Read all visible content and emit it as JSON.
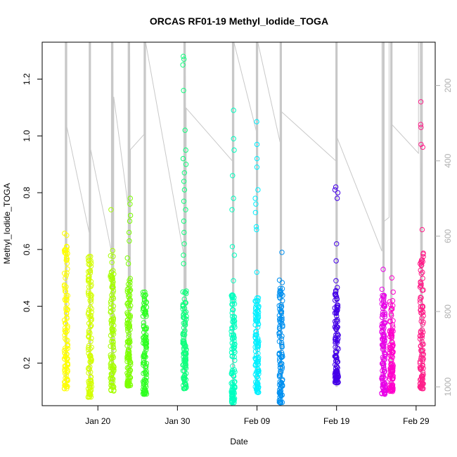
{
  "chart_data": {
    "type": "scatter",
    "title": "ORCAS RF01-19 Methyl_Iodide_TOGA",
    "xlabel": "Date",
    "ylabel": "Methyl_Iodide_TOGA",
    "x_ticks": [
      {
        "label": "Jan 20",
        "day": 20
      },
      {
        "label": "Jan 30",
        "day": 30
      },
      {
        "label": "Feb 09",
        "day": 40
      },
      {
        "label": "Feb 19",
        "day": 50
      },
      {
        "label": "Feb 29",
        "day": 60
      }
    ],
    "xlim_days": [
      13.0,
      62.4
    ],
    "ylim": [
      0.05,
      1.33
    ],
    "y_ticks": [
      0.2,
      0.4,
      0.6,
      0.8,
      1.0,
      1.2
    ],
    "y2_ticks": [
      200,
      400,
      600,
      800,
      1000
    ],
    "y2lim_inverted": [
      85,
      1050
    ],
    "grid": false,
    "flights": [
      {
        "day": 16.0,
        "color": "#FFFF00",
        "ymin": 0.11,
        "ymax": 0.66,
        "extra": [
          0.6,
          0.65
        ]
      },
      {
        "day": 19.0,
        "color": "#D4FF00",
        "ymin": 0.08,
        "ymax": 0.58,
        "extra": [
          0.56,
          0.47
        ]
      },
      {
        "day": 21.8,
        "color": "#A6FF00",
        "ymin": 0.1,
        "ymax": 0.6,
        "extra": [
          0.74,
          0.52
        ]
      },
      {
        "day": 23.9,
        "color": "#7CFF00",
        "ymin": 0.12,
        "ymax": 0.5,
        "extra": [
          0.78,
          0.76,
          0.72,
          0.7,
          0.66,
          0.63,
          0.57,
          0.55
        ]
      },
      {
        "day": 25.9,
        "color": "#2EFF22",
        "ymin": 0.09,
        "ymax": 0.46,
        "extra": [
          0.45,
          0.44
        ]
      },
      {
        "day": 30.9,
        "color": "#10FF7E",
        "ymin": 0.11,
        "ymax": 0.46,
        "extra": [
          1.28,
          1.27,
          1.25,
          1.16,
          1.02,
          0.95,
          0.92,
          0.9,
          0.87,
          0.84,
          0.81,
          0.77,
          0.74,
          0.7,
          0.66,
          0.62,
          0.58,
          0.55
        ]
      },
      {
        "day": 37.0,
        "color": "#00FFC0",
        "ymin": 0.06,
        "ymax": 0.45,
        "extra": [
          1.09,
          0.99,
          0.95,
          0.86,
          0.78,
          0.74,
          0.61,
          0.58,
          0.49
        ]
      },
      {
        "day": 40.0,
        "color": "#00F0FF",
        "ymin": 0.09,
        "ymax": 0.44,
        "extra": [
          1.05,
          0.97,
          0.92,
          0.89,
          0.81,
          0.78,
          0.76,
          0.73,
          0.68,
          0.67,
          0.52
        ]
      },
      {
        "day": 43.0,
        "color": "#0090F0",
        "ymin": 0.06,
        "ymax": 0.5,
        "extra": [
          0.59
        ]
      },
      {
        "day": 50.0,
        "color": "#4400E8",
        "ymin": 0.13,
        "ymax": 0.47,
        "extra": [
          0.82,
          0.81,
          0.8,
          0.78,
          0.62,
          0.56,
          0.49
        ]
      },
      {
        "day": 55.9,
        "color": "#E800E8",
        "ymin": 0.09,
        "ymax": 0.44,
        "extra": [
          0.53,
          0.46
        ]
      },
      {
        "day": 56.9,
        "color": "#FF00CC",
        "ymin": 0.1,
        "ymax": 0.42,
        "extra": [
          0.5,
          0.45
        ]
      },
      {
        "day": 60.7,
        "color": "#FF1F8A",
        "ymin": 0.11,
        "ymax": 0.59,
        "extra": [
          1.12,
          1.04,
          1.03,
          0.97,
          0.96,
          0.67,
          0.55
        ]
      }
    ],
    "track_color": "#c8c8c8",
    "altitude_track": [
      [
        15.9,
        1010
      ],
      [
        15.9,
        85
      ],
      [
        16.1,
        85
      ],
      [
        16.1,
        1000
      ],
      [
        16.1,
        310
      ],
      [
        18.9,
        590
      ],
      [
        18.9,
        85
      ],
      [
        19.0,
        85
      ],
      [
        19.1,
        1000
      ],
      [
        19.1,
        370
      ],
      [
        21.7,
        640
      ],
      [
        21.7,
        85
      ],
      [
        21.9,
        85
      ],
      [
        22.0,
        1000
      ],
      [
        22.0,
        230
      ],
      [
        23.8,
        520
      ],
      [
        23.8,
        85
      ],
      [
        24.0,
        85
      ],
      [
        24.1,
        1000
      ],
      [
        24.1,
        370
      ],
      [
        25.8,
        330
      ],
      [
        25.8,
        85
      ],
      [
        25.9,
        85
      ],
      [
        26.0,
        1000
      ],
      [
        26.0,
        85
      ],
      [
        30.8,
        650
      ],
      [
        30.8,
        85
      ],
      [
        31.0,
        85
      ],
      [
        31.1,
        1000
      ],
      [
        31.1,
        260
      ],
      [
        36.9,
        400
      ],
      [
        36.9,
        85
      ],
      [
        37.0,
        85
      ],
      [
        37.1,
        1000
      ],
      [
        37.1,
        85
      ],
      [
        39.9,
        320
      ],
      [
        39.9,
        85
      ],
      [
        40.0,
        85
      ],
      [
        40.1,
        1000
      ],
      [
        40.1,
        85
      ],
      [
        42.9,
        350
      ],
      [
        42.9,
        85
      ],
      [
        43.0,
        85
      ],
      [
        43.1,
        1000
      ],
      [
        43.1,
        270
      ],
      [
        49.9,
        400
      ],
      [
        49.9,
        85
      ],
      [
        50.0,
        85
      ],
      [
        50.1,
        1000
      ],
      [
        50.1,
        340
      ],
      [
        55.7,
        640
      ],
      [
        55.7,
        85
      ],
      [
        55.9,
        85
      ],
      [
        55.9,
        1000
      ],
      [
        56.0,
        560
      ],
      [
        56.6,
        550
      ],
      [
        56.6,
        85
      ],
      [
        56.8,
        85
      ],
      [
        56.8,
        1000
      ],
      [
        56.8,
        300
      ],
      [
        60.3,
        380
      ],
      [
        60.3,
        85
      ],
      [
        60.5,
        85
      ],
      [
        60.6,
        1000
      ]
    ]
  }
}
